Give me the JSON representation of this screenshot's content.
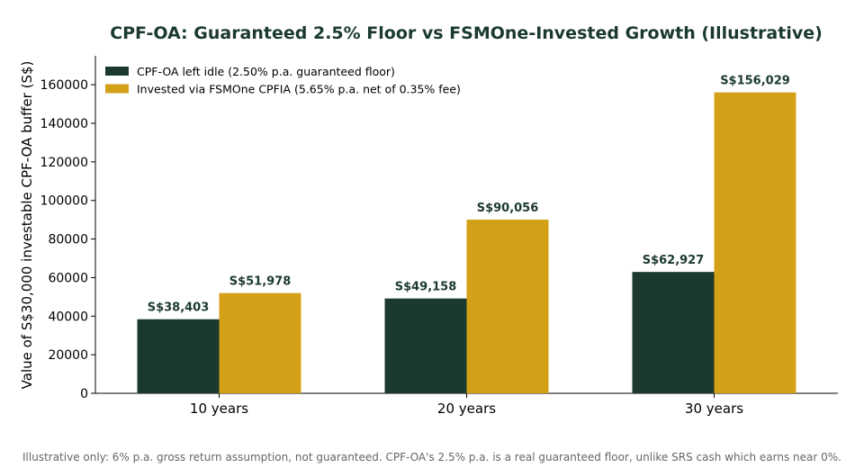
{
  "chart_data": {
    "type": "bar",
    "title": "CPF-OA: Guaranteed 2.5% Floor vs FSMOne-Invested Growth (Illustrative)",
    "xlabel": "",
    "ylabel": "Value of S$30,000 investable CPF-OA buffer (S$)",
    "categories": [
      "10 years",
      "20 years",
      "30 years"
    ],
    "series": [
      {
        "name": "CPF-OA left idle (2.50% p.a. guaranteed floor)",
        "color": "#1b3a2d",
        "values": [
          38403,
          49158,
          62927
        ],
        "labels": [
          "S$38,403",
          "S$49,158",
          "S$62,927"
        ]
      },
      {
        "name": "Invested via FSMOne CPFIA (5.65% p.a. net of 0.35% fee)",
        "color": "#d4a017",
        "values": [
          51978,
          90056,
          156029
        ],
        "labels": [
          "S$51,978",
          "S$90,056",
          "S$156,029"
        ]
      }
    ],
    "ylim": [
      0,
      175000
    ],
    "yticks": [
      0,
      20000,
      40000,
      60000,
      80000,
      100000,
      120000,
      140000,
      160000
    ],
    "ytick_labels": [
      "0",
      "20000",
      "40000",
      "60000",
      "80000",
      "100000",
      "120000",
      "140000",
      "160000"
    ],
    "grid": false,
    "legend_position": "top-left"
  },
  "footnote": "Illustrative only: 6% p.a. gross return assumption, not guaranteed. CPF-OA's 2.5% p.a. is a real guaranteed floor, unlike SRS cash which earns near 0%."
}
